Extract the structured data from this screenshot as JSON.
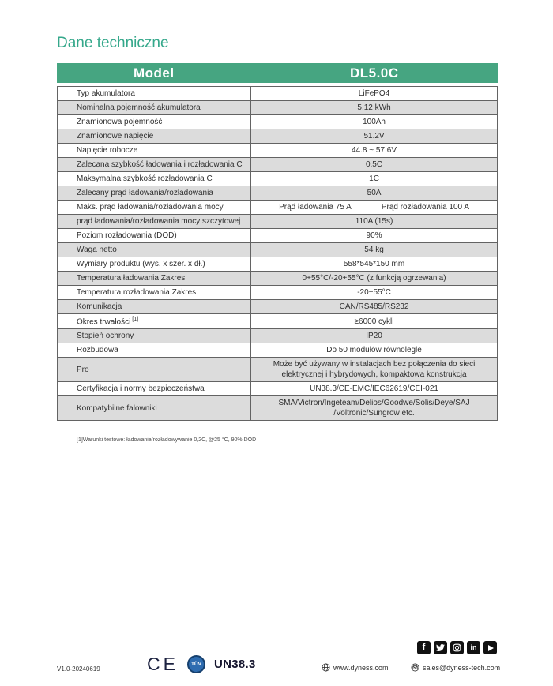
{
  "page": {
    "title": "Dane techniczne",
    "footnote": "[1]Warunki testowe: ładowanie/rozładowywanie 0,2C, @25 °C, 90% DOD"
  },
  "table": {
    "header": {
      "col1": "Model",
      "col2": "DL5.0C"
    },
    "rows": [
      {
        "label": "Typ akumulatora",
        "value": "LiFePO4"
      },
      {
        "label": "Nominalna pojemność akumulatora",
        "value": "5.12 kWh"
      },
      {
        "label": "Znamionowa pojemność",
        "value": "100Ah"
      },
      {
        "label": "Znamionowe napięcie",
        "value": "51.2V"
      },
      {
        "label": "Napięcie robocze",
        "value": "44.8 ~ 57.6V"
      },
      {
        "label": "Zalecana szybkość ładowania i rozładowania C",
        "value": "0.5C"
      },
      {
        "label": "Maksymalna szybkość rozładowania C",
        "value": "1C"
      },
      {
        "label": "Zalecany prąd ładowania/rozładowania",
        "value": "50A"
      },
      {
        "label": "Maks. prąd ładowania/rozładowania mocy",
        "values": [
          "Prąd ładowania 75 A",
          "Prąd rozładowania 100 A"
        ]
      },
      {
        "label": "prąd ładowania/rozładowania mocy szczytowej",
        "value": "110A (15s)"
      },
      {
        "label": "Poziom rozładowania (DOD)",
        "value": "90%"
      },
      {
        "label": "Waga netto",
        "value": "54 kg"
      },
      {
        "label": "Wymiary produktu (wys. x szer. x dł.)",
        "value": "558*545*150 mm"
      },
      {
        "label": "Temperatura ładowania Zakres",
        "value": "0+55°C/-20+55°C (z funkcją ogrzewania)"
      },
      {
        "label": "Temperatura rozładowania Zakres",
        "value": "-20+55°C"
      },
      {
        "label": "Komunikacja",
        "value": "CAN/RS485/RS232"
      },
      {
        "label": "Okres trwałości",
        "label_sup": "[1]",
        "value": "≥6000 cykli"
      },
      {
        "label": "Stopień ochrony",
        "value": "IP20"
      },
      {
        "label": "Rozbudowa",
        "value": "Do 50 modułów równolegle"
      },
      {
        "label": "Pro",
        "value": "Może być używany w instalacjach bez połączenia do sieci\nelektrycznej i hybrydowych, kompaktowa konstrukcja"
      },
      {
        "label": "Certyfikacja i normy bezpieczeństwa",
        "value": "UN38.3/CE-EMC/IEC62619/CEI-021"
      },
      {
        "label": "Kompatybilne falowniki",
        "value": "SMA/Victron/Ingeteam/Delios/Goodwe/Solis/Deye/SAJ\n/Voltronic/Sungrow etc."
      }
    ]
  },
  "footer": {
    "version": "V1.0-20240619",
    "ce_label": "CE",
    "tuv_label": "TÜV",
    "un_label": "UN38.3",
    "website": "www.dyness.com",
    "email": "sales@dyness-tech.com",
    "social_icons": [
      "facebook",
      "twitter",
      "instagram",
      "linkedin",
      "youtube"
    ]
  },
  "colors": {
    "accent_green": "#46a581",
    "title_teal": "#35a88b",
    "row_gray": "#dcdcdc",
    "tuv_blue": "#2e6cb0"
  }
}
